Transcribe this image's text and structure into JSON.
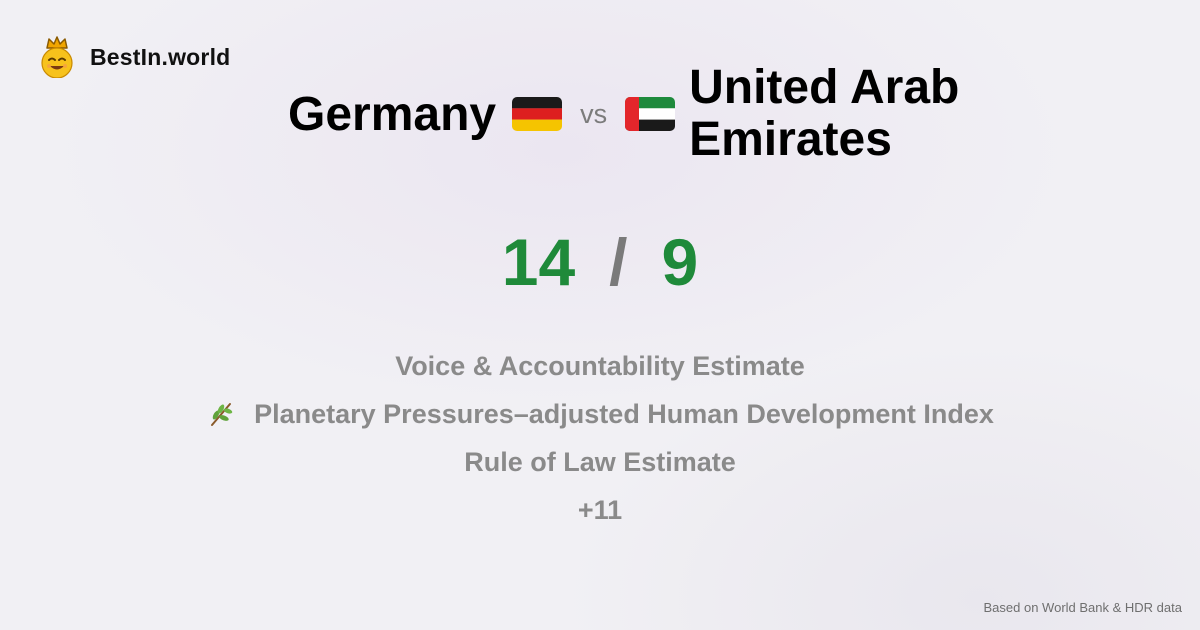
{
  "brand": {
    "name": "BestIn.world",
    "icon": "crowned-smiley-icon"
  },
  "comparison": {
    "country_a": "Germany",
    "country_a_flag": "germany-flag-icon",
    "vs_label": "vs",
    "country_b": "United Arab Emirates",
    "country_b_flag": "uae-flag-icon"
  },
  "score": {
    "a": "14",
    "separator": "/",
    "b": "9"
  },
  "metrics": [
    {
      "label": "Voice & Accountability Estimate"
    },
    {
      "label": "Planetary Pressures–adjusted Human Development Index",
      "icon": "leaf-branch-icon"
    },
    {
      "label": "Rule of Law Estimate"
    }
  ],
  "more_count": "+11",
  "footer": "Based on World Bank & HDR data",
  "colors": {
    "score": "#1f8a3a",
    "muted": "#8a8a8a",
    "background": "#f1f0f4"
  }
}
